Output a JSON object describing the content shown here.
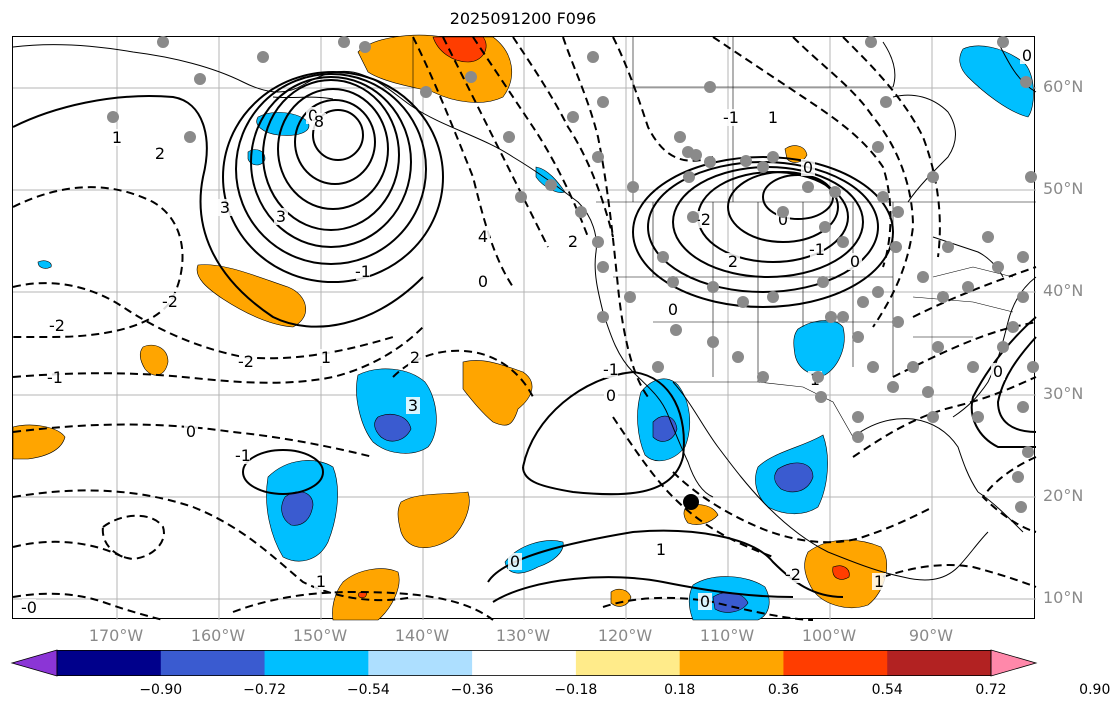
{
  "title": "2025091200 F096",
  "lat_labels": [
    "60°N",
    "50°N",
    "40°N",
    "30°N",
    "20°N",
    "10°N"
  ],
  "lon_labels": [
    "170°W",
    "160°W",
    "150°W",
    "140°W",
    "130°W",
    "120°W",
    "110°W",
    "100°W",
    "90°W"
  ],
  "colorbar": {
    "colors": [
      "#8B35D6",
      "#00008B",
      "#3A5BD0",
      "#00BFFF",
      "#ADDFFF",
      "#FFFFFF",
      "#FFEB8A",
      "#FFA500",
      "#FF3D00",
      "#B22222",
      "#FF88AA"
    ],
    "tick_labels": [
      "−0.90",
      "−0.72",
      "−0.54",
      "−0.36",
      "−0.18",
      "0.18",
      "0.36",
      "0.54",
      "0.72",
      "0.90"
    ]
  },
  "contour_labels": [
    "0",
    "1",
    "2",
    "3",
    "8",
    "-2",
    "-1",
    "0",
    "1",
    "2",
    "3",
    "-2",
    "-1",
    "0",
    "2",
    "-2",
    "3",
    "4",
    "0",
    "2",
    "-2",
    "0",
    "-1",
    "0",
    "-1",
    "0",
    "1",
    "-2",
    "0",
    "-1",
    "1",
    "0",
    "-1",
    "1",
    "0",
    "0",
    "-0",
    "1",
    "0",
    "1"
  ],
  "colors": {
    "gray_text": "#8a8a8a",
    "station_dot": "#8a8a8a",
    "marker": "#000000"
  }
}
